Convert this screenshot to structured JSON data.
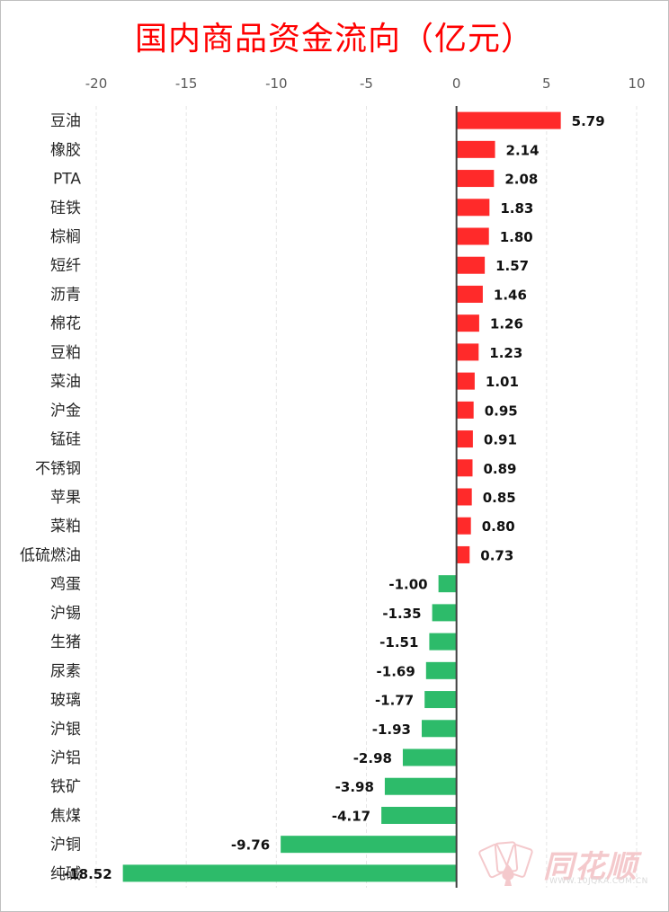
{
  "chart_data": {
    "type": "bar",
    "orientation": "horizontal",
    "title": "国内商品资金流向（亿元）",
    "xlim": [
      -20,
      10
    ],
    "xticks": [
      "-20",
      "-15",
      "-10",
      "-5",
      "0",
      "5",
      "10"
    ],
    "grid": true,
    "categories": [
      "豆油",
      "橡胶",
      "PTA",
      "硅铁",
      "棕榈",
      "短纤",
      "沥青",
      "棉花",
      "豆粕",
      "菜油",
      "沪金",
      "锰硅",
      "不锈钢",
      "苹果",
      "菜粕",
      "低硫燃油",
      "鸡蛋",
      "沪锡",
      "生猪",
      "尿素",
      "玻璃",
      "沪银",
      "沪铝",
      "铁矿",
      "焦煤",
      "沪铜",
      "纯碱"
    ],
    "values": [
      5.79,
      2.14,
      2.08,
      1.83,
      1.8,
      1.57,
      1.46,
      1.26,
      1.23,
      1.01,
      0.95,
      0.91,
      0.89,
      0.85,
      0.8,
      0.73,
      -1.0,
      -1.35,
      -1.51,
      -1.69,
      -1.77,
      -1.93,
      -2.98,
      -3.98,
      -4.17,
      -9.76,
      -18.52
    ],
    "value_labels": [
      "5.79",
      "2.14",
      "2.08",
      "1.83",
      "1.80",
      "1.57",
      "1.46",
      "1.26",
      "1.23",
      "1.01",
      "0.95",
      "0.91",
      "0.89",
      "0.85",
      "0.80",
      "0.73",
      "-1.00",
      "-1.35",
      "-1.51",
      "-1.69",
      "-1.77",
      "-1.93",
      "-2.98",
      "-3.98",
      "-4.17",
      "-9.76",
      "-18.52"
    ],
    "colors": {
      "positive": "#ff2a2a",
      "negative": "#2dbb6a",
      "title": "#ff0000",
      "axis": "#404040",
      "grid": "#e6e6e6"
    }
  },
  "watermark": {
    "brand": "同花顺",
    "url": "WWW.10JQKA.COM.CN",
    "icon": "playing-card-logo-icon"
  }
}
